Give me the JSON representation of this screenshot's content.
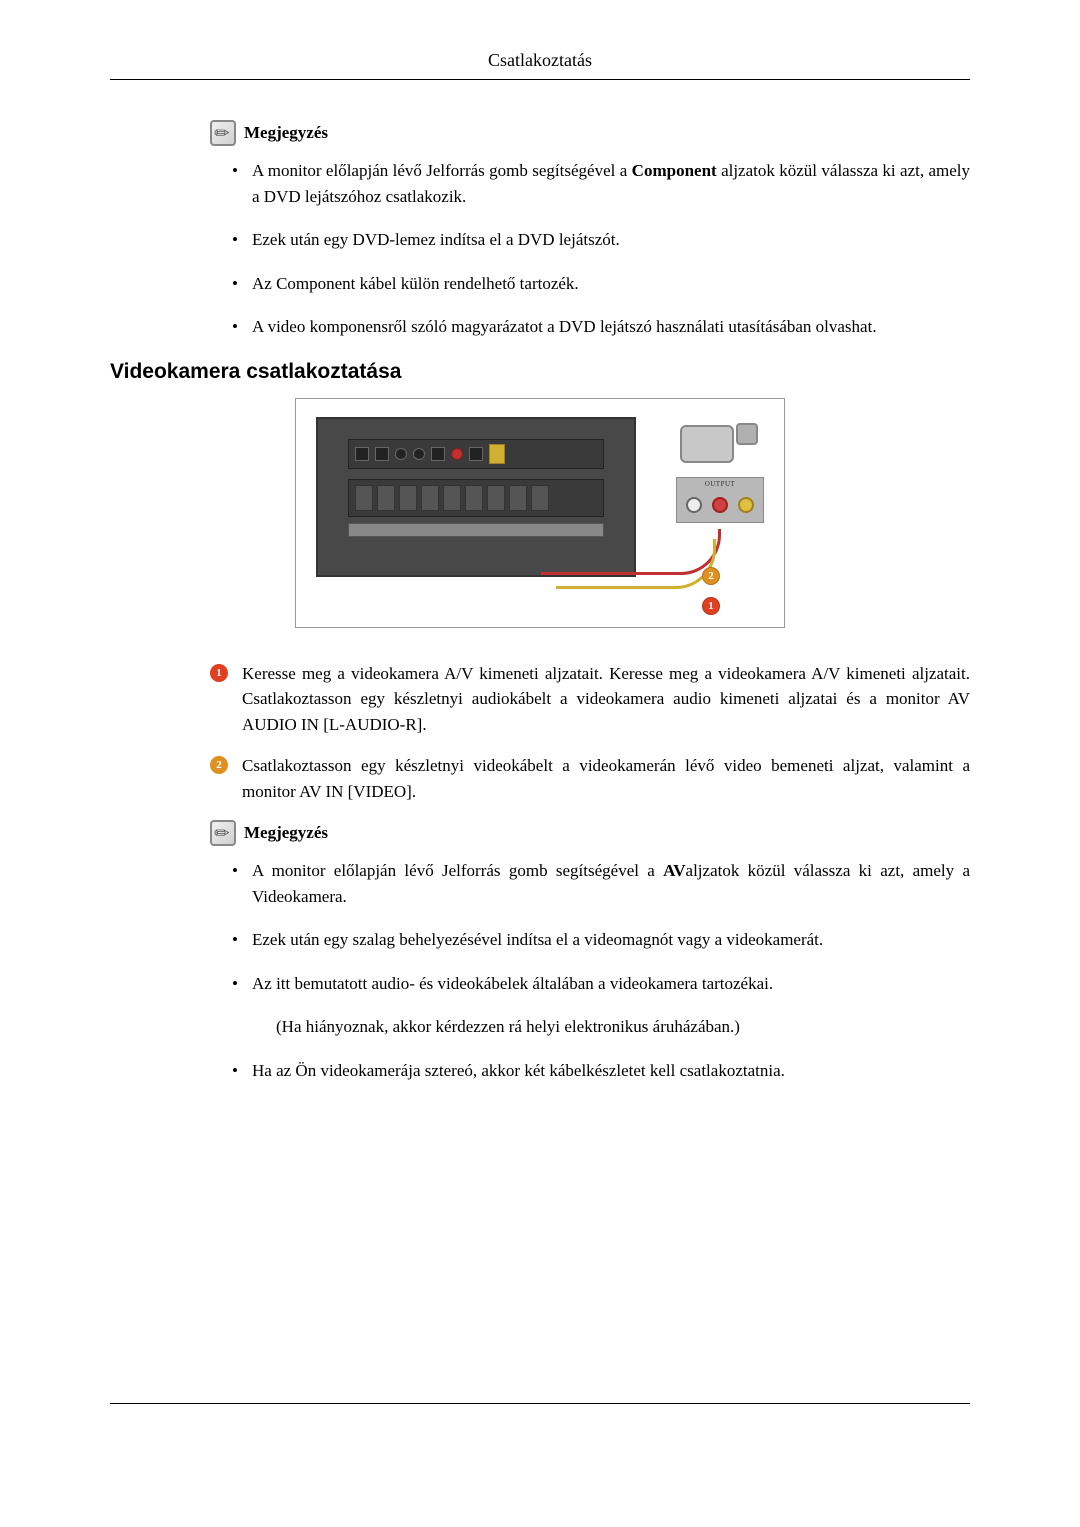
{
  "header": {
    "title": "Csatlakoztatás"
  },
  "note1": {
    "label": "Megjegyzés",
    "items": [
      {
        "pre": "A monitor előlapján lévő Jelforrás gomb segítségével a ",
        "bold": "Component",
        "post": " aljzatok közül válassza ki azt, amely a DVD lejátszóhoz csatlakozik."
      },
      {
        "text": "Ezek után egy DVD-lemez indítsa el a DVD lejátszót."
      },
      {
        "text": "Az Component kábel külön rendelhető tartozék."
      },
      {
        "text": "A video komponensről szóló magyarázatot a DVD lejátszó használati utasításában olvashat."
      }
    ]
  },
  "section": {
    "title": "Videokamera csatlakoztatása"
  },
  "diagram": {
    "output_label": "OUTPUT",
    "callout1": "1",
    "callout2": "2",
    "colors": {
      "monitor_bg": "#484848",
      "cable_yellow": "#d0b030",
      "cable_red": "#c03030",
      "callout1_bg": "#e04020",
      "callout2_bg": "#e09020"
    }
  },
  "steps": {
    "items": [
      {
        "num": "1",
        "text": "Keresse meg a videokamera A/V kimeneti aljzatait. Keresse meg a videokamera A/V kimeneti aljzatait. Csatlakoztasson egy készletnyi audiokábelt a videokamera audio kimeneti aljzatai és a monitor AV AUDIO IN [L-AUDIO-R]."
      },
      {
        "num": "2",
        "text": "Csatlakoztasson egy készletnyi videokábelt a videokamerán lévő video bemeneti aljzat, valamint a monitor AV IN [VIDEO]."
      }
    ]
  },
  "note2": {
    "label": "Megjegyzés",
    "items": [
      {
        "pre": "A monitor előlapján lévő Jelforrás gomb segítségével a ",
        "bold": "AV",
        "post": "aljzatok közül válassza ki azt, amely a Videokamera."
      },
      {
        "text": "Ezek után egy szalag behelyezésével indítsa el a videomagnót vagy a videokamerát."
      },
      {
        "text": "Az itt bemutatott audio- és videokábelek általában a videokamera tartozékai.",
        "sub": "(Ha hiányoznak, akkor kérdezzen rá helyi elektronikus áruházában.)"
      },
      {
        "text": "Ha az Ön videokamerája sztereó, akkor két kábelkészletet kell csatlakoztatnia."
      }
    ]
  }
}
